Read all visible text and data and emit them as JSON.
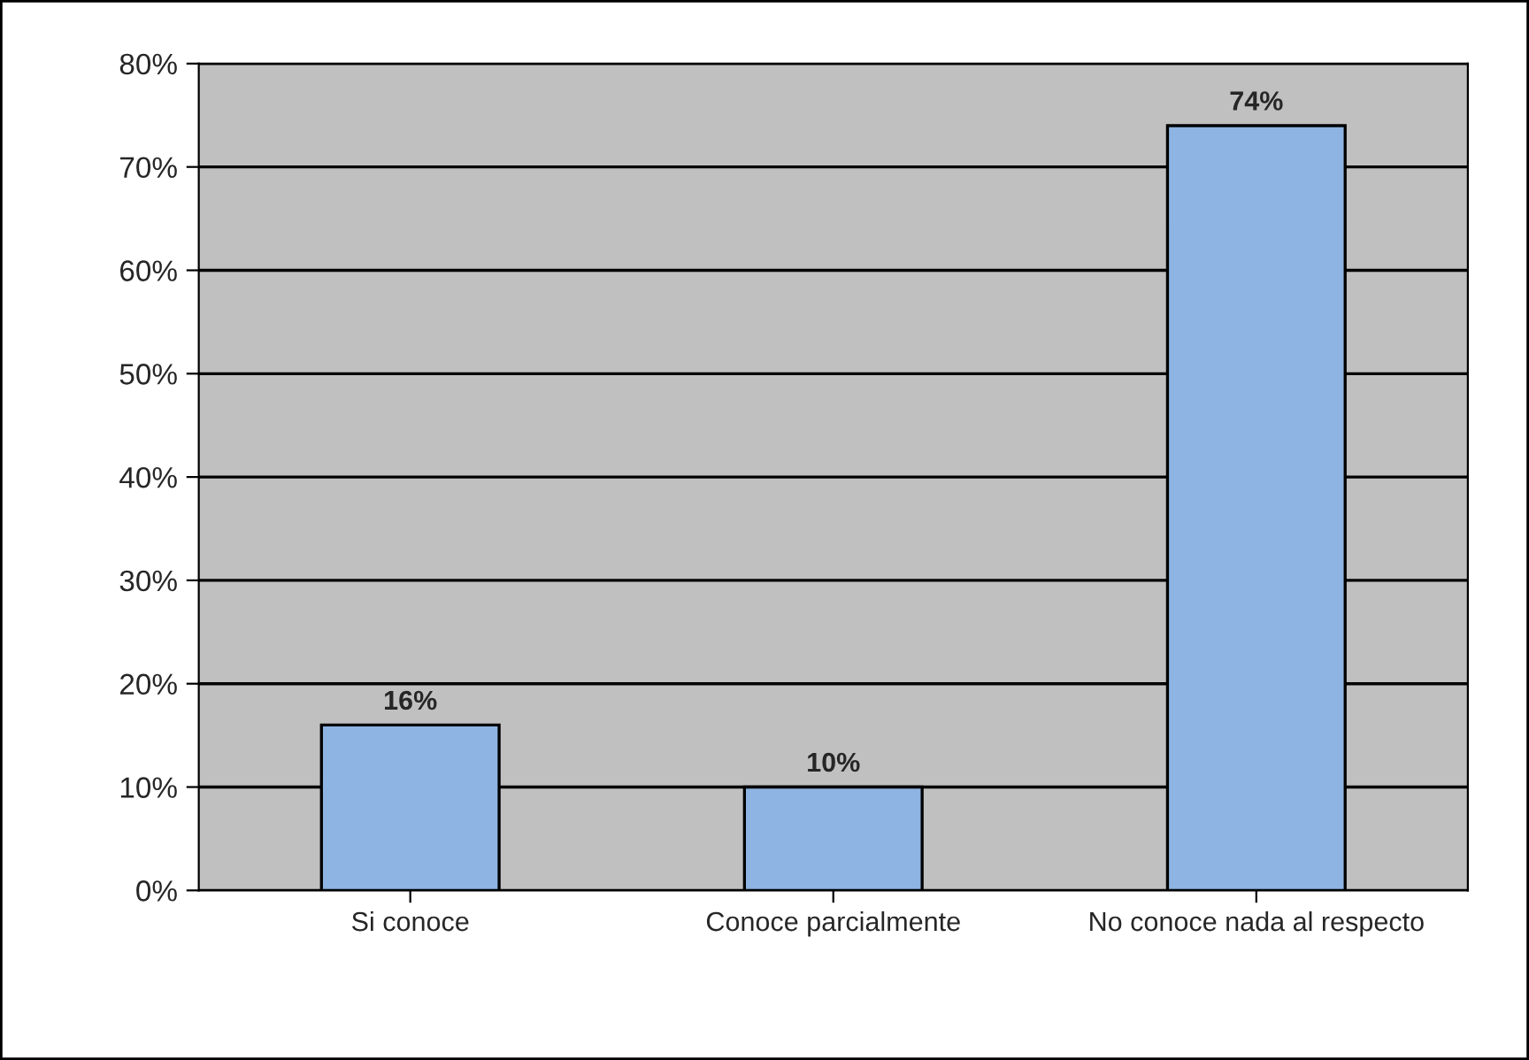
{
  "chart_data": {
    "type": "bar",
    "categories": [
      "Si conoce",
      "Conoce parcialmente",
      "No conoce nada al respecto"
    ],
    "values": [
      16,
      10,
      74
    ],
    "value_labels": [
      "16%",
      "10%",
      "74%"
    ],
    "color": "#8db4e2",
    "ylim": [
      0,
      80
    ],
    "yticks": [
      {
        "value": 0,
        "label": "0%"
      },
      {
        "value": 10,
        "label": "10%"
      },
      {
        "value": 20,
        "label": "20%"
      },
      {
        "value": 30,
        "label": "30%"
      },
      {
        "value": 40,
        "label": "40%"
      },
      {
        "value": 50,
        "label": "50%"
      },
      {
        "value": 60,
        "label": "60%"
      },
      {
        "value": 70,
        "label": "70%"
      },
      {
        "value": 80,
        "label": "80%"
      }
    ],
    "grid": "y"
  }
}
